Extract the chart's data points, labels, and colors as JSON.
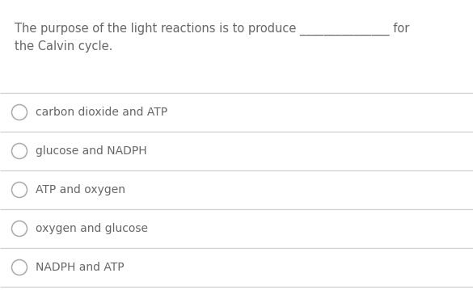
{
  "background_color": "#ffffff",
  "question_line1": "The purpose of the light reactions is to produce _______________ for",
  "question_line2": "the Calvin cycle.",
  "options": [
    "carbon dioxide and ATP",
    "glucose and NADPH",
    "ATP and oxygen",
    "oxygen and glucose",
    "NADPH and ATP"
  ],
  "text_color": "#666666",
  "line_color": "#d0d0d0",
  "circle_edge_color": "#aaaaaa",
  "font_size": 10.0,
  "question_font_size": 10.5,
  "fig_width": 5.85,
  "fig_height": 3.59,
  "dpi": 100
}
